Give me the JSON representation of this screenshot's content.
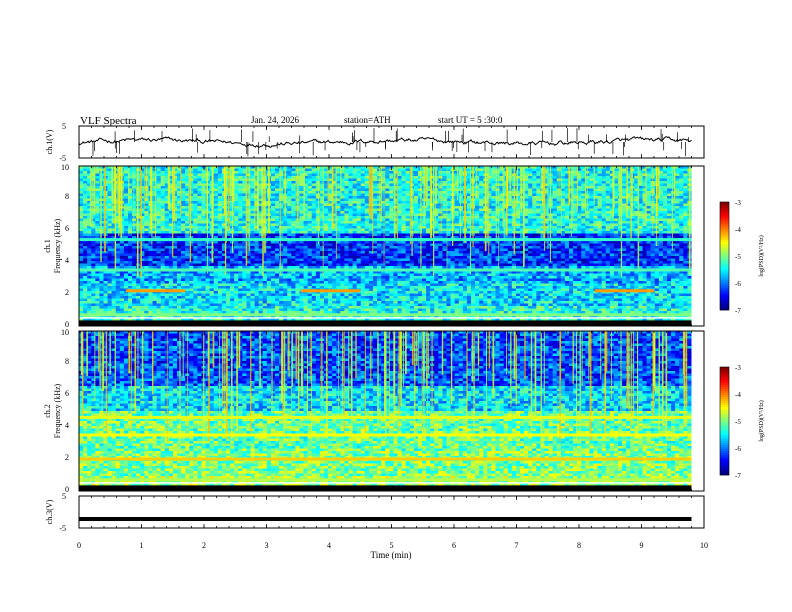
{
  "header": {
    "title": "VLF Spectra",
    "date": "Jan. 24, 2026",
    "station": "station=ATH",
    "start_ut": "start UT =  5 :30:0"
  },
  "chart_data": [
    {
      "type": "line",
      "panel": "ch1-waveform",
      "ylabel": "ch.1(V)",
      "ylim": [
        -5,
        5
      ],
      "yticks": [
        "5",
        "-5"
      ],
      "xlim": [
        0,
        10
      ],
      "series": [
        {
          "description": "noisy waveform near 0 V with sparse spikes",
          "x_range": [
            0,
            9.8
          ]
        }
      ]
    },
    {
      "type": "heatmap",
      "panel": "ch1-spectrogram",
      "channel_label": "ch.1",
      "ylabel": "Frequency (kHz)",
      "ylim": [
        0,
        10
      ],
      "yticks": [
        "0",
        "2",
        "4",
        "6",
        "8",
        "10"
      ],
      "xlim": [
        0,
        10
      ],
      "bands_khz": [
        {
          "f": 2.2,
          "level": -4.1,
          "segments": [
            [
              0.75,
              1.7
            ],
            [
              3.55,
              4.5
            ],
            [
              8.25,
              9.2
            ]
          ]
        },
        {
          "f": 3.5,
          "level": -5.2
        },
        {
          "f": 5.4,
          "level": -5.3
        },
        {
          "f": 0.7,
          "level": -5.0
        }
      ],
      "colorbar": {
        "label": "log(PSD)(V²/Hz)",
        "ticks": [
          "-3",
          "-4",
          "-5",
          "-6",
          "-7"
        ],
        "range": [
          -7,
          -3
        ]
      }
    },
    {
      "type": "heatmap",
      "panel": "ch2-spectrogram",
      "channel_label": "ch.2",
      "ylabel": "Frequency (kHz)",
      "ylim": [
        0,
        10
      ],
      "yticks": [
        "0",
        "2",
        "4",
        "6",
        "8",
        "10"
      ],
      "xlim": [
        0,
        10
      ],
      "bands_khz": [
        {
          "f": 4.6,
          "level": -4.6
        },
        {
          "f": 3.5,
          "level": -4.5
        },
        {
          "f": 2.0,
          "level": -4.3
        },
        {
          "f": 0.7,
          "level": -4.8
        }
      ],
      "colorbar": {
        "label": "log(PSD)(V²/Hz)",
        "ticks": [
          "-3",
          "-4",
          "-5",
          "-6",
          "-7"
        ],
        "range": [
          -7,
          -3
        ]
      }
    },
    {
      "type": "line",
      "panel": "ch3-waveform",
      "ylabel": "ch.3(V)",
      "ylim": [
        -5,
        5
      ],
      "yticks": [
        "5",
        "-5"
      ],
      "xlim": [
        0,
        10
      ],
      "series": [
        {
          "description": "flat thick line",
          "value": -2.2,
          "x_range": [
            0,
            9.8
          ]
        }
      ]
    }
  ],
  "xaxis": {
    "label": "Time (min)",
    "ticks": [
      "0",
      "1",
      "2",
      "3",
      "4",
      "5",
      "6",
      "7",
      "8",
      "9",
      "10"
    ],
    "range": [
      0,
      10
    ],
    "data_end": 9.8
  }
}
